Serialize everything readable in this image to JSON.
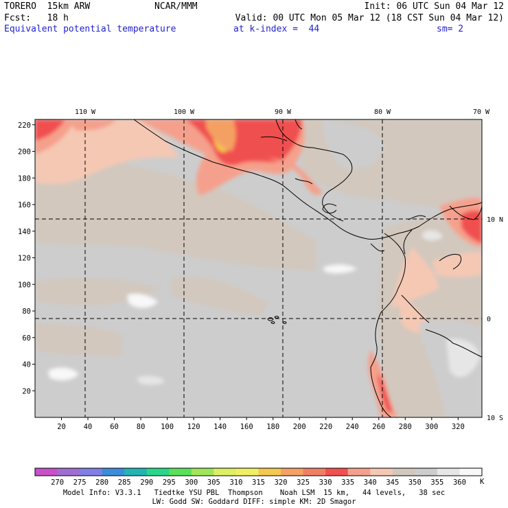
{
  "header": {
    "model": "TORERO  15km ARW",
    "center": "NCAR/MMM",
    "init": "Init: 06 UTC Sun 04 Mar 12",
    "fcst": "Fcst:   18 h",
    "valid": "Valid: 00 UTC Mon 05 Mar 12 (18 CST Sun 04 Mar 12)",
    "field": "Equivalent potential temperature",
    "level": "at k-index =  44",
    "smooth": "sm= 2"
  },
  "map": {
    "lon_labels": [
      "110 W",
      "100 W",
      "90 W",
      "80 W",
      "70 W"
    ],
    "lat_labels": [
      "10 N",
      "0",
      "10 S"
    ],
    "x_ticks": [
      "20",
      "40",
      "60",
      "80",
      "100",
      "120",
      "140",
      "160",
      "180",
      "200",
      "220",
      "240",
      "260",
      "280",
      "300",
      "320"
    ],
    "y_ticks": [
      "20",
      "40",
      "60",
      "80",
      "100",
      "120",
      "140",
      "160",
      "180",
      "200",
      "220"
    ]
  },
  "colorbar": {
    "unit": "K",
    "labels": [
      "270",
      "275",
      "280",
      "285",
      "290",
      "295",
      "300",
      "305",
      "310",
      "315",
      "320",
      "325",
      "330",
      "335",
      "340",
      "345",
      "350",
      "355",
      "360"
    ],
    "colors": [
      "#c850c8",
      "#a06ed2",
      "#7f7fe6",
      "#3c8cdc",
      "#23b4b4",
      "#2ad68a",
      "#5ae05a",
      "#a0e65a",
      "#dcf064",
      "#f0f064",
      "#f5c850",
      "#f5a064",
      "#f08064",
      "#f05050",
      "#f5a08c",
      "#f5c8b4",
      "#d2c8be",
      "#cdcdcd",
      "#e6e6e6",
      "#f8f8f8"
    ]
  },
  "footer": {
    "line1": "Model Info: V3.3.1   Tiedtke YSU PBL  Thompson    Noah LSM  15 km,   44 levels,   38 sec",
    "line2": "LW: Godd SW: Goddard DIFF: simple KM: 2D Smagor"
  }
}
